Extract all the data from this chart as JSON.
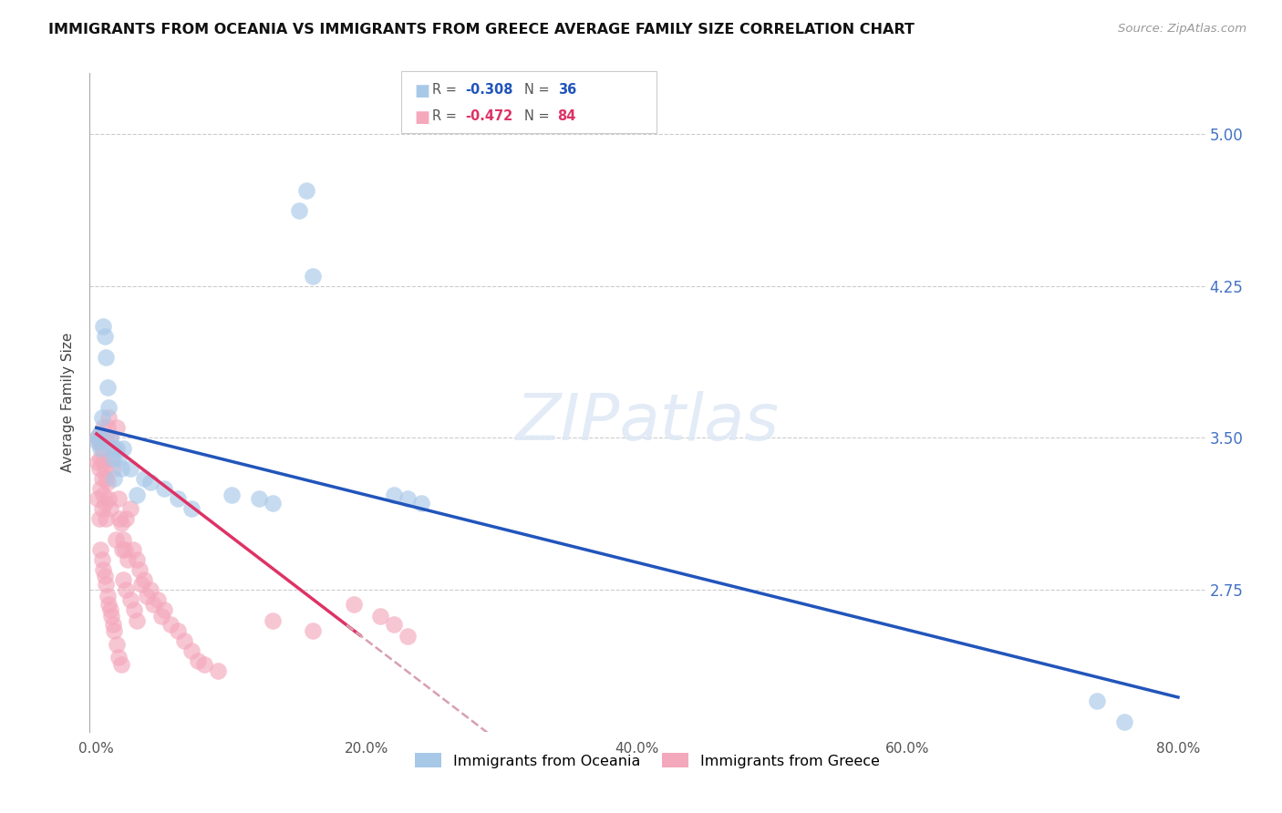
{
  "title": "IMMIGRANTS FROM OCEANIA VS IMMIGRANTS FROM GREECE AVERAGE FAMILY SIZE CORRELATION CHART",
  "source": "Source: ZipAtlas.com",
  "ylabel": "Average Family Size",
  "ylim": [
    2.05,
    5.3
  ],
  "xlim": [
    -0.005,
    0.82
  ],
  "yticks": [
    2.75,
    3.5,
    4.25,
    5.0
  ],
  "ytick_labels": [
    "2.75",
    "3.50",
    "4.25",
    "5.00"
  ],
  "xlabel_vals": [
    0.0,
    0.2,
    0.4,
    0.6,
    0.8
  ],
  "xlabel_ticks": [
    "0.0%",
    "20.0%",
    "40.0%",
    "60.0%",
    "80.0%"
  ],
  "oceania_label": "Immigrants from Oceania",
  "greece_label": "Immigrants from Greece",
  "oceania_color": "#a8c8e8",
  "greece_color": "#f4a8bc",
  "oceania_line_color": "#2255bb",
  "greece_line_color": "#dd3366",
  "greece_dash_color": "#d8a0b0",
  "right_tick_color": "#4472c4",
  "legend_r1_val": "-0.308",
  "legend_n1_val": "36",
  "legend_r2_val": "-0.472",
  "legend_n2_val": "84",
  "oceania_x": [
    0.001,
    0.001,
    0.002,
    0.003,
    0.004,
    0.005,
    0.006,
    0.007,
    0.008,
    0.009,
    0.01,
    0.011,
    0.012,
    0.013,
    0.015,
    0.016,
    0.018,
    0.02,
    0.025,
    0.03,
    0.035,
    0.04,
    0.05,
    0.06,
    0.07,
    0.1,
    0.12,
    0.13,
    0.15,
    0.155,
    0.16,
    0.22,
    0.23,
    0.24,
    0.74,
    0.76
  ],
  "oceania_y": [
    3.5,
    3.48,
    3.52,
    3.45,
    3.6,
    4.05,
    4.0,
    3.9,
    3.75,
    3.65,
    3.5,
    3.45,
    3.4,
    3.3,
    3.45,
    3.4,
    3.35,
    3.45,
    3.35,
    3.22,
    3.3,
    3.28,
    3.25,
    3.2,
    3.15,
    3.22,
    3.2,
    3.18,
    4.62,
    4.72,
    4.3,
    3.22,
    3.2,
    3.18,
    2.2,
    2.1
  ],
  "greece_x": [
    0.001,
    0.001,
    0.001,
    0.002,
    0.002,
    0.002,
    0.003,
    0.003,
    0.003,
    0.003,
    0.004,
    0.004,
    0.004,
    0.004,
    0.005,
    0.005,
    0.005,
    0.005,
    0.006,
    0.006,
    0.006,
    0.006,
    0.007,
    0.007,
    0.007,
    0.007,
    0.008,
    0.008,
    0.008,
    0.009,
    0.009,
    0.009,
    0.01,
    0.01,
    0.01,
    0.011,
    0.011,
    0.012,
    0.012,
    0.013,
    0.013,
    0.014,
    0.015,
    0.015,
    0.016,
    0.016,
    0.017,
    0.018,
    0.018,
    0.019,
    0.02,
    0.02,
    0.021,
    0.022,
    0.022,
    0.023,
    0.025,
    0.025,
    0.027,
    0.028,
    0.03,
    0.03,
    0.032,
    0.033,
    0.035,
    0.037,
    0.04,
    0.042,
    0.045,
    0.048,
    0.05,
    0.055,
    0.06,
    0.065,
    0.07,
    0.075,
    0.08,
    0.09,
    0.13,
    0.16,
    0.19,
    0.21,
    0.22,
    0.23
  ],
  "greece_y": [
    3.5,
    3.38,
    3.2,
    3.48,
    3.35,
    3.1,
    3.52,
    3.4,
    3.25,
    2.95,
    3.45,
    3.3,
    3.15,
    2.9,
    3.55,
    3.38,
    3.22,
    2.85,
    3.5,
    3.35,
    3.18,
    2.82,
    3.5,
    3.3,
    3.1,
    2.78,
    3.55,
    3.28,
    2.72,
    3.6,
    3.2,
    2.68,
    3.5,
    3.15,
    2.65,
    3.4,
    2.62,
    3.35,
    2.58,
    3.45,
    2.55,
    3.0,
    3.55,
    2.48,
    3.2,
    2.42,
    3.1,
    3.08,
    2.38,
    2.95,
    3.0,
    2.8,
    2.95,
    3.1,
    2.75,
    2.9,
    3.15,
    2.7,
    2.95,
    2.65,
    2.9,
    2.6,
    2.85,
    2.78,
    2.8,
    2.72,
    2.75,
    2.68,
    2.7,
    2.62,
    2.65,
    2.58,
    2.55,
    2.5,
    2.45,
    2.4,
    2.38,
    2.35,
    2.6,
    2.55,
    2.68,
    2.62,
    2.58,
    2.52
  ]
}
